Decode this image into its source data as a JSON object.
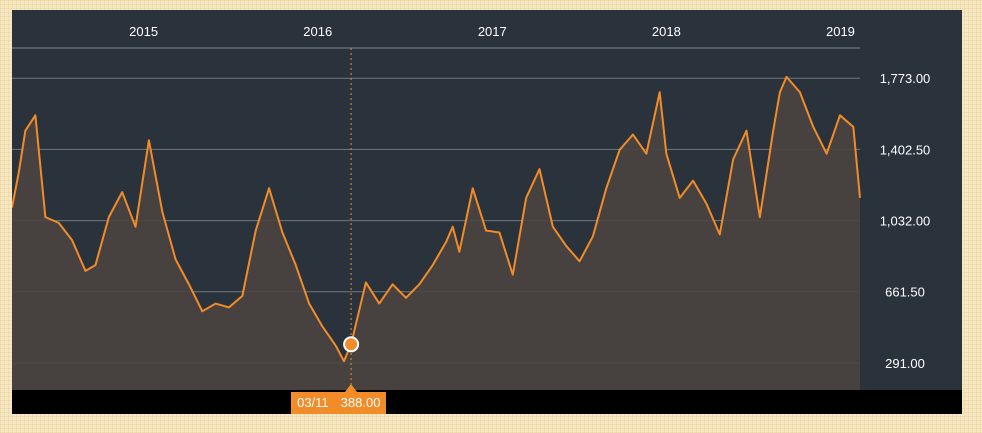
{
  "chart_data": {
    "type": "area",
    "title": "",
    "xlabel": "",
    "ylabel": "",
    "x_ticks": [
      "2015",
      "2016",
      "2017",
      "2018",
      "2019"
    ],
    "y_ticks": [
      "291.00",
      "661.50",
      "1,032.00",
      "1,402.50",
      "1,773.00"
    ],
    "ylim": [
      150,
      1920
    ],
    "grid": "horizontal",
    "colors": {
      "line": "#f28c28",
      "fill": "#4a4240",
      "background": "#2a323c",
      "grid": "#7d848c",
      "text": "#ffffff",
      "tooltip": "#f28c28"
    },
    "series": [
      {
        "x": [
          "2014-03-31",
          "2014-04-14",
          "2014-04-28",
          "2014-05-19",
          "2014-06-09",
          "2014-07-07",
          "2014-08-04",
          "2014-09-01",
          "2014-09-22",
          "2014-10-20",
          "2014-11-17",
          "2014-12-15",
          "2015-01-12",
          "2015-02-09",
          "2015-03-09",
          "2015-04-06",
          "2015-05-04",
          "2015-06-01",
          "2015-06-29",
          "2015-07-27",
          "2015-08-24",
          "2015-09-21",
          "2015-10-19",
          "2015-11-16",
          "2015-12-14",
          "2016-01-11",
          "2016-02-08",
          "2016-02-25",
          "2016-03-11",
          "2016-04-11",
          "2016-05-09",
          "2016-06-06",
          "2016-07-04",
          "2016-08-01",
          "2016-08-29",
          "2016-09-26",
          "2016-10-10",
          "2016-10-24",
          "2016-11-21",
          "2016-12-19",
          "2017-01-16",
          "2017-02-13",
          "2017-03-13",
          "2017-04-10",
          "2017-05-08",
          "2017-06-05",
          "2017-07-03",
          "2017-07-31",
          "2017-08-28",
          "2017-09-25",
          "2017-10-23",
          "2017-11-20",
          "2017-12-18",
          "2018-01-01",
          "2018-01-29",
          "2018-02-26",
          "2018-03-26",
          "2018-04-23",
          "2018-05-21",
          "2018-06-18",
          "2018-07-16",
          "2018-08-13",
          "2018-08-27",
          "2018-09-10",
          "2018-10-08",
          "2018-11-05",
          "2018-12-03",
          "2018-12-31",
          "2019-01-28",
          "2019-02-11"
        ],
        "y": [
          1100,
          1280,
          1500,
          1580,
          1050,
          1020,
          930,
          770,
          800,
          1050,
          1180,
          1000,
          1450,
          1080,
          830,
          700,
          560,
          600,
          580,
          640,
          980,
          1200,
          970,
          800,
          600,
          480,
          380,
          300,
          388,
          710,
          600,
          700,
          630,
          700,
          800,
          920,
          1000,
          870,
          1200,
          980,
          970,
          750,
          1150,
          1300,
          1000,
          900,
          820,
          950,
          1200,
          1400,
          1480,
          1380,
          1700,
          1380,
          1150,
          1240,
          1120,
          960,
          1350,
          1500,
          1050,
          1500,
          1700,
          1780,
          1700,
          1520,
          1380,
          1580,
          1520,
          1150
        ]
      }
    ],
    "tooltip": {
      "date": "03/11",
      "value": "388.00"
    }
  }
}
